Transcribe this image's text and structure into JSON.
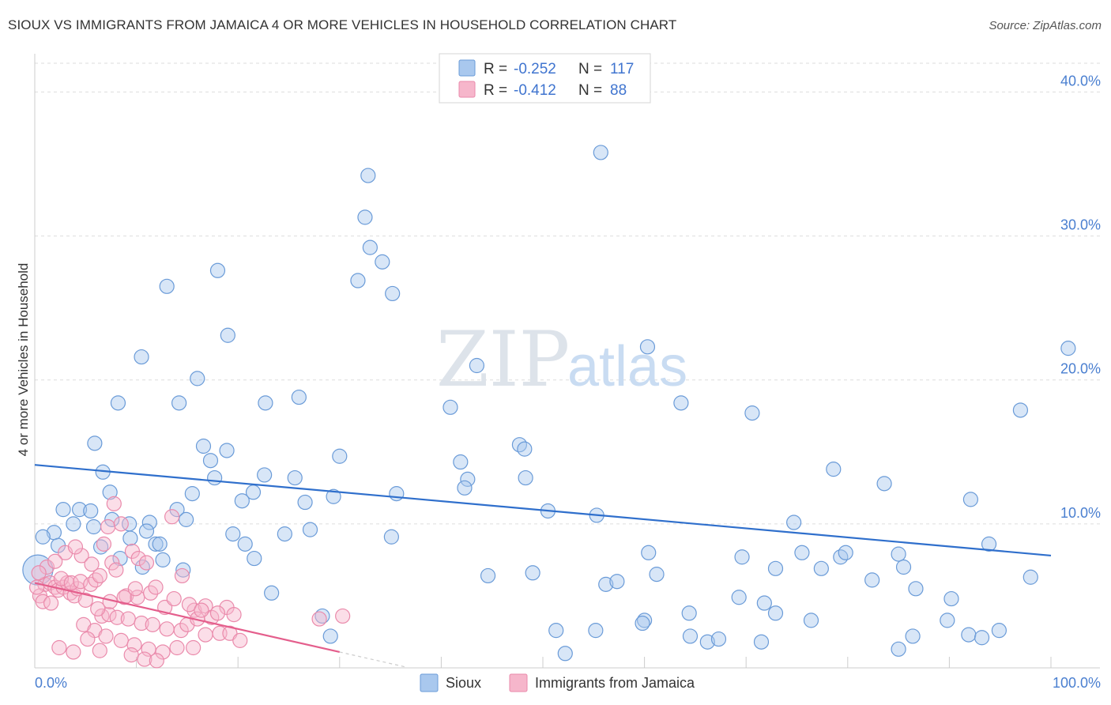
{
  "title": "SIOUX VS IMMIGRANTS FROM JAMAICA 4 OR MORE VEHICLES IN HOUSEHOLD CORRELATION CHART",
  "source": "Source: ZipAtlas.com",
  "watermark": {
    "zip": "ZIP",
    "atlas": "atlas"
  },
  "chart_data": {
    "type": "scatter",
    "ylabel": "4 or more Vehicles in Household",
    "xlim": [
      0,
      100
    ],
    "ylim": [
      0,
      42
    ],
    "x_ticks": [
      {
        "value": 0,
        "label": "0.0%"
      },
      {
        "value": 100,
        "label": "100.0%"
      }
    ],
    "y_ticks": [
      {
        "value": 10,
        "label": "10.0%"
      },
      {
        "value": 20,
        "label": "20.0%"
      },
      {
        "value": 30,
        "label": "30.0%"
      },
      {
        "value": 40,
        "label": "40.0%"
      }
    ],
    "grid": true,
    "legend": {
      "placement": "top-center",
      "entries": [
        {
          "r_label": "R =",
          "r_value": "-0.252",
          "n_label": "N =",
          "n_value": "117"
        },
        {
          "r_label": "R =",
          "r_value": "-0.412",
          "n_label": "N =",
          "n_value": "88"
        }
      ]
    },
    "bottom_legend": [
      "Sioux",
      "Immigrants from Jamaica"
    ],
    "colors": {
      "sioux_fill": "#a9c8ee",
      "sioux_stroke": "#6a9bd8",
      "sioux_line": "#2f6fcc",
      "jamaica_fill": "#f6b6cb",
      "jamaica_stroke": "#ea8aab",
      "jamaica_line": "#e45e8c",
      "grid": "#dddddd",
      "tick_text": "#4a7fd0"
    },
    "series": [
      {
        "name": "Sioux",
        "trend": {
          "x0": 0,
          "y0": 14.1,
          "x1": 100,
          "y1": 7.8
        },
        "points": [
          [
            55.7,
            35.8
          ],
          [
            32.8,
            34.2
          ],
          [
            32.5,
            31.3
          ],
          [
            33.0,
            29.2
          ],
          [
            34.2,
            28.2
          ],
          [
            18.0,
            27.6
          ],
          [
            31.8,
            26.9
          ],
          [
            13.0,
            26.5
          ],
          [
            35.2,
            26.0
          ],
          [
            19.0,
            23.1
          ],
          [
            60.3,
            22.3
          ],
          [
            10.5,
            21.6
          ],
          [
            101.7,
            22.2
          ],
          [
            43.5,
            21.0
          ],
          [
            16.0,
            20.1
          ],
          [
            8.2,
            18.4
          ],
          [
            14.2,
            18.4
          ],
          [
            22.7,
            18.4
          ],
          [
            26.0,
            18.8
          ],
          [
            40.9,
            18.1
          ],
          [
            63.6,
            18.4
          ],
          [
            70.6,
            17.7
          ],
          [
            97.0,
            17.9
          ],
          [
            5.9,
            15.6
          ],
          [
            16.6,
            15.4
          ],
          [
            18.9,
            15.1
          ],
          [
            47.7,
            15.5
          ],
          [
            48.2,
            15.2
          ],
          [
            30.0,
            14.7
          ],
          [
            17.3,
            14.4
          ],
          [
            41.9,
            14.3
          ],
          [
            6.7,
            13.6
          ],
          [
            17.7,
            13.2
          ],
          [
            22.6,
            13.4
          ],
          [
            25.6,
            13.2
          ],
          [
            42.6,
            13.1
          ],
          [
            48.3,
            13.2
          ],
          [
            78.6,
            13.8
          ],
          [
            83.6,
            12.8
          ],
          [
            7.4,
            12.2
          ],
          [
            15.5,
            12.1
          ],
          [
            21.5,
            12.2
          ],
          [
            35.6,
            12.1
          ],
          [
            42.3,
            12.5
          ],
          [
            20.4,
            11.6
          ],
          [
            26.6,
            11.5
          ],
          [
            29.4,
            11.9
          ],
          [
            92.1,
            11.7
          ],
          [
            2.8,
            11.0
          ],
          [
            4.4,
            11.0
          ],
          [
            14.0,
            11.0
          ],
          [
            5.5,
            10.9
          ],
          [
            50.5,
            10.9
          ],
          [
            55.3,
            10.6
          ],
          [
            7.6,
            10.3
          ],
          [
            3.8,
            10.0
          ],
          [
            5.8,
            9.8
          ],
          [
            9.3,
            10.0
          ],
          [
            11.3,
            10.1
          ],
          [
            14.9,
            10.3
          ],
          [
            74.7,
            10.1
          ],
          [
            1.9,
            9.4
          ],
          [
            0.8,
            9.1
          ],
          [
            9.4,
            9.0
          ],
          [
            11.0,
            9.5
          ],
          [
            19.5,
            9.3
          ],
          [
            24.6,
            9.3
          ],
          [
            27.1,
            9.6
          ],
          [
            35.1,
            9.1
          ],
          [
            2.3,
            8.5
          ],
          [
            6.5,
            8.4
          ],
          [
            11.9,
            8.6
          ],
          [
            12.3,
            8.6
          ],
          [
            20.7,
            8.6
          ],
          [
            60.4,
            8.0
          ],
          [
            75.5,
            8.0
          ],
          [
            85.0,
            7.9
          ],
          [
            93.9,
            8.6
          ],
          [
            8.4,
            7.6
          ],
          [
            12.6,
            7.5
          ],
          [
            21.6,
            7.6
          ],
          [
            69.6,
            7.7
          ],
          [
            79.3,
            7.7
          ],
          [
            79.8,
            8.0
          ],
          [
            85.5,
            7.0
          ],
          [
            10.6,
            7.0
          ],
          [
            14.6,
            6.8
          ],
          [
            72.9,
            6.9
          ],
          [
            77.4,
            6.9
          ],
          [
            98.0,
            6.3
          ],
          [
            44.6,
            6.4
          ],
          [
            49.0,
            6.6
          ],
          [
            61.2,
            6.5
          ],
          [
            82.4,
            6.1
          ],
          [
            56.2,
            5.8
          ],
          [
            57.3,
            6.0
          ],
          [
            86.7,
            5.5
          ],
          [
            90.2,
            4.8
          ],
          [
            23.3,
            5.2
          ],
          [
            69.3,
            4.9
          ],
          [
            71.8,
            4.5
          ],
          [
            72.9,
            3.8
          ],
          [
            28.3,
            3.6
          ],
          [
            64.4,
            3.8
          ],
          [
            76.4,
            3.3
          ],
          [
            60.0,
            3.3
          ],
          [
            59.8,
            3.1
          ],
          [
            55.2,
            2.6
          ],
          [
            89.8,
            3.3
          ],
          [
            51.3,
            2.6
          ],
          [
            86.4,
            2.2
          ],
          [
            91.9,
            2.3
          ],
          [
            93.2,
            2.1
          ],
          [
            94.9,
            2.6
          ],
          [
            64.5,
            2.2
          ],
          [
            66.2,
            1.8
          ],
          [
            67.3,
            2.0
          ],
          [
            71.5,
            1.8
          ],
          [
            85.0,
            1.3
          ],
          [
            52.2,
            1.0
          ],
          [
            29.1,
            2.2
          ],
          [
            0.3,
            6.8
          ]
        ]
      },
      {
        "name": "Immigrants from Jamaica",
        "trend": {
          "x0": 0,
          "y0": 5.9,
          "x1": 30,
          "y1": 1.1,
          "dash_to_x": 36.5
        },
        "points": [
          [
            1.0,
            5.8
          ],
          [
            1.5,
            5.9
          ],
          [
            2.0,
            5.6
          ],
          [
            2.3,
            5.4
          ],
          [
            2.8,
            5.6
          ],
          [
            3.2,
            5.9
          ],
          [
            3.5,
            5.2
          ],
          [
            3.9,
            5.0
          ],
          [
            4.2,
            5.5
          ],
          [
            0.5,
            5.0
          ],
          [
            0.8,
            4.6
          ],
          [
            1.6,
            4.5
          ],
          [
            2.6,
            6.2
          ],
          [
            3.6,
            5.9
          ],
          [
            4.5,
            6.0
          ],
          [
            5.0,
            4.7
          ],
          [
            5.5,
            5.8
          ],
          [
            6.0,
            6.1
          ],
          [
            6.4,
            6.4
          ],
          [
            7.2,
            9.8
          ],
          [
            7.8,
            11.4
          ],
          [
            8.5,
            10.0
          ],
          [
            9.6,
            8.1
          ],
          [
            10.2,
            7.6
          ],
          [
            11.0,
            7.3
          ],
          [
            13.5,
            10.5
          ],
          [
            14.5,
            6.4
          ],
          [
            3.0,
            8.0
          ],
          [
            4.6,
            7.8
          ],
          [
            6.8,
            8.6
          ],
          [
            7.6,
            7.3
          ],
          [
            8.0,
            6.8
          ],
          [
            9.0,
            5.0
          ],
          [
            10.1,
            4.9
          ],
          [
            11.4,
            5.2
          ],
          [
            12.8,
            4.2
          ],
          [
            15.7,
            4.0
          ],
          [
            16.8,
            4.3
          ],
          [
            18.9,
            4.2
          ],
          [
            19.6,
            3.7
          ],
          [
            6.6,
            3.6
          ],
          [
            7.3,
            3.7
          ],
          [
            8.1,
            3.5
          ],
          [
            9.2,
            3.4
          ],
          [
            10.5,
            3.1
          ],
          [
            11.6,
            3.0
          ],
          [
            13.0,
            2.7
          ],
          [
            14.4,
            2.6
          ],
          [
            15.0,
            3.0
          ],
          [
            16.0,
            3.4
          ],
          [
            17.4,
            3.5
          ],
          [
            18.2,
            2.4
          ],
          [
            19.2,
            2.4
          ],
          [
            20.2,
            1.9
          ],
          [
            4.8,
            3.0
          ],
          [
            5.9,
            2.6
          ],
          [
            7.0,
            2.2
          ],
          [
            8.5,
            1.9
          ],
          [
            9.8,
            1.6
          ],
          [
            11.2,
            1.3
          ],
          [
            12.6,
            1.1
          ],
          [
            14.0,
            1.4
          ],
          [
            15.6,
            1.4
          ],
          [
            16.8,
            2.3
          ],
          [
            2.4,
            1.4
          ],
          [
            3.8,
            1.1
          ],
          [
            6.4,
            1.2
          ],
          [
            9.5,
            0.9
          ],
          [
            10.8,
            0.6
          ],
          [
            12.0,
            0.5
          ],
          [
            5.2,
            2.0
          ],
          [
            6.2,
            4.1
          ],
          [
            7.4,
            4.6
          ],
          [
            8.8,
            4.9
          ],
          [
            9.9,
            5.5
          ],
          [
            11.9,
            5.6
          ],
          [
            13.7,
            4.8
          ],
          [
            15.2,
            4.4
          ],
          [
            16.4,
            4.0
          ],
          [
            18.0,
            3.8
          ],
          [
            1.2,
            7.0
          ],
          [
            2.0,
            7.4
          ],
          [
            4.0,
            8.4
          ],
          [
            5.6,
            7.2
          ],
          [
            30.3,
            3.6
          ],
          [
            28.0,
            3.4
          ],
          [
            0.4,
            6.6
          ],
          [
            0.2,
            5.6
          ]
        ]
      }
    ]
  }
}
